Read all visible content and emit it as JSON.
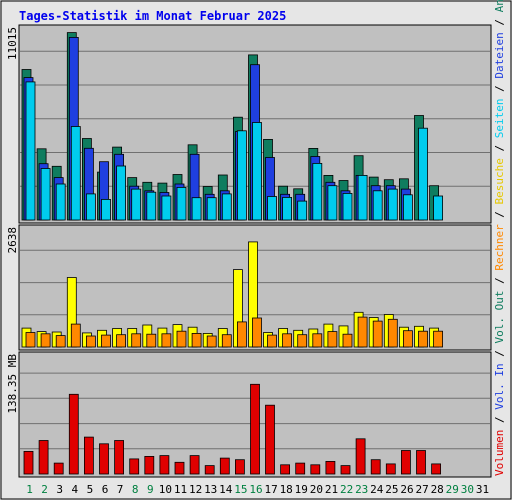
{
  "colors": {
    "background": "#e6e6e6",
    "plot_bg": "#c0c0c0",
    "title": "#0000ee",
    "hits": "#0f7d5f",
    "files": "#1f3fe0",
    "pages": "#00ccee",
    "visits": "#ffff00",
    "sites": "#ff8800",
    "volume": "#e00000",
    "weekday_label": "#000000",
    "weekend_label": "#008040"
  },
  "chart_data": {
    "title": "Tages-Statistik im Monat Februar 2025",
    "type": "bar",
    "categories": [
      "1",
      "2",
      "3",
      "4",
      "5",
      "6",
      "7",
      "8",
      "9",
      "10",
      "11",
      "12",
      "13",
      "14",
      "15",
      "16",
      "17",
      "18",
      "19",
      "20",
      "21",
      "22",
      "23",
      "24",
      "25",
      "26",
      "27",
      "28",
      "29",
      "30",
      "31"
    ],
    "weekend_days": [
      "1",
      "2",
      "8",
      "9",
      "15",
      "16",
      "22",
      "23",
      "29",
      "30"
    ],
    "grid": true,
    "panels": [
      {
        "id": "requests",
        "ymax_label": "11015",
        "ymax": 11015,
        "series": [
          {
            "name": "Anfragen",
            "color": "#0f7d5f",
            "values": [
              8770,
              4150,
              3130,
              10920,
              4750,
              2790,
              4250,
              2470,
              2200,
              2150,
              2650,
              4380,
              1950,
              2620,
              5990,
              9620,
              4700,
              1970,
              1820,
              4170,
              2600,
              2300,
              3750,
              2500,
              2350,
              2400,
              6090,
              2000,
              null,
              null,
              null
            ]
          },
          {
            "name": "Dateien",
            "color": "#1f3fe0",
            "values": [
              8300,
              3280,
              2470,
              10640,
              4180,
              3400,
              3830,
              1970,
              1700,
              1600,
              2100,
              3830,
              1500,
              1700,
              5150,
              9050,
              3640,
              1500,
              1500,
              3700,
              2200,
              1700,
              2600,
              2000,
              2000,
              1800,
              null,
              null,
              null,
              null,
              null
            ]
          },
          {
            "name": "Seiten",
            "color": "#00ccee",
            "values": [
              8050,
              3000,
              2100,
              5450,
              1520,
              1200,
              3150,
              1800,
              1620,
              1400,
              1900,
              1300,
              1300,
              1520,
              5200,
              5680,
              1370,
              1320,
              1100,
              3300,
              2000,
              1550,
              2600,
              1700,
              1800,
              1470,
              5350,
              1400,
              null,
              null,
              null
            ]
          }
        ]
      },
      {
        "id": "visits",
        "ymax_label": "2638",
        "ymax": 2638,
        "series": [
          {
            "name": "Besuche",
            "color": "#ffff00",
            "values": [
              430,
              350,
              340,
              1580,
              320,
              380,
              420,
              420,
              500,
              430,
              510,
              450,
              310,
              420,
              1760,
              2390,
              330,
              420,
              380,
              410,
              520,
              480,
              790,
              670,
              740,
              450,
              470,
              430,
              null,
              null,
              null
            ]
          },
          {
            "name": "Rechner",
            "color": "#ff8800",
            "values": [
              330,
              300,
              260,
              520,
              250,
              270,
              280,
              300,
              290,
              300,
              360,
              310,
              250,
              280,
              570,
              660,
              270,
              300,
              280,
              300,
              350,
              290,
              680,
              590,
              630,
              370,
              360,
              360,
              null,
              null,
              null
            ]
          }
        ]
      },
      {
        "id": "volume",
        "ymax_label": "138.35 MB",
        "ymax": 138.35,
        "series": [
          {
            "name": "Volumen",
            "color": "#e00000",
            "values": [
              27,
              40,
              13,
              95,
              44,
              36,
              40,
              18,
              21,
              22,
              14,
              22,
              10,
              19,
              17,
              107,
              82,
              11,
              13,
              11,
              15,
              10,
              42,
              17,
              12,
              28,
              28,
              12,
              null,
              null,
              null
            ]
          }
        ]
      }
    ],
    "right_legend": [
      {
        "text": "Volumen",
        "color": "#e00000"
      },
      {
        "text": " / ",
        "color": "#000000"
      },
      {
        "text": "Vol. In",
        "color": "#1f3fe0"
      },
      {
        "text": " / ",
        "color": "#000000"
      },
      {
        "text": "Vol. Out",
        "color": "#0f7d5f"
      },
      {
        "text": " / ",
        "color": "#000000"
      },
      {
        "text": "Rechner",
        "color": "#ff8800"
      },
      {
        "text": " / ",
        "color": "#000000"
      },
      {
        "text": "Besuche",
        "color": "#e6c800"
      },
      {
        "text": " / ",
        "color": "#000000"
      },
      {
        "text": "Seiten",
        "color": "#00ccee"
      },
      {
        "text": " / ",
        "color": "#000000"
      },
      {
        "text": "Dateien",
        "color": "#1f3fe0"
      },
      {
        "text": " / ",
        "color": "#000000"
      },
      {
        "text": "Anfragen",
        "color": "#0f7d5f"
      }
    ]
  }
}
